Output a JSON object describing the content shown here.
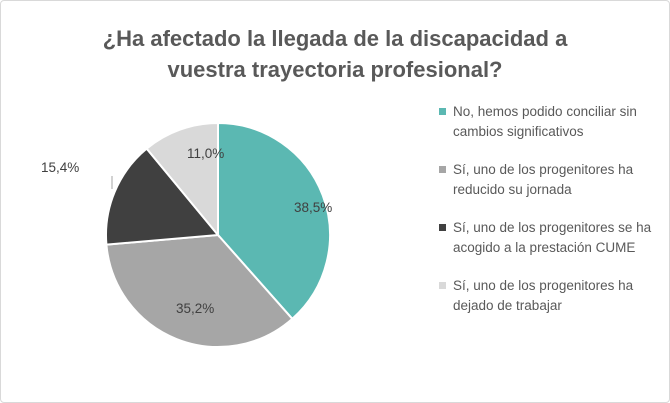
{
  "chart_data": {
    "type": "pie",
    "title": "¿Ha afectado la llegada de la discapacidad a vuestra trayectoria profesional?",
    "title_lines": [
      "¿Ha afectado la llegada de la discapacidad a",
      "vuestra trayectoria profesional?"
    ],
    "legend_position": "right",
    "slices": [
      {
        "name": "No, hemos podido conciliar sin cambios significativos",
        "value": 38.5,
        "label": "38,5%",
        "color": "#5bb8b2"
      },
      {
        "name": "Sí, uno de los progenitores ha reducido su jornada",
        "value": 35.2,
        "label": "35,2%",
        "color": "#a6a6a6"
      },
      {
        "name": "Sí, uno de los progenitores se ha acogido a la prestación CUME",
        "value": 15.4,
        "label": "15,4%",
        "color": "#404040"
      },
      {
        "name": "Sí, uno de los progenitores ha dejado de trabajar",
        "value": 11.0,
        "label": "11,0%",
        "color": "#d9d9d9"
      }
    ]
  }
}
